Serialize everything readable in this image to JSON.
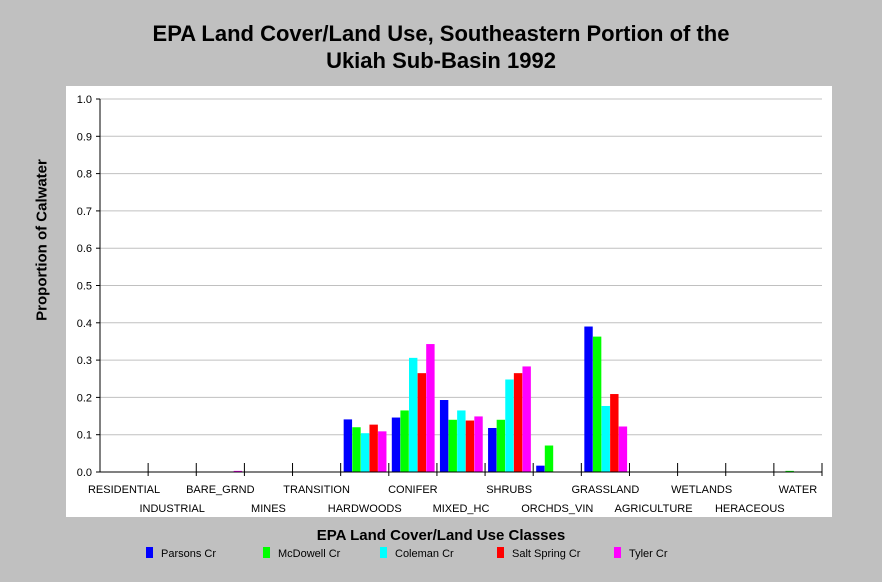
{
  "chart_data": {
    "type": "bar",
    "title": "EPA Land Cover/Land Use, Southeastern Portion of the Ukiah Sub-Basin 1992",
    "title_lines": [
      "EPA Land Cover/Land Use, Southeastern Portion of the",
      "Ukiah Sub-Basin 1992"
    ],
    "xlabel": "EPA Land Cover/Land Use Classes",
    "ylabel": "Proportion of Calwater",
    "ylim": [
      0,
      1
    ],
    "yticks": [
      "0.0",
      "0.1",
      "0.2",
      "0.3",
      "0.4",
      "0.5",
      "0.6",
      "0.7",
      "0.8",
      "0.9",
      "1.0"
    ],
    "grid": true,
    "legend_position": "bottom",
    "categories": [
      "RESIDENTIAL",
      "INDUSTRIAL",
      "BARE_GRND",
      "MINES",
      "TRANSITION",
      "HARDWOODS",
      "CONIFER",
      "MIXED_HC",
      "SHRUBS",
      "ORCHDS_VIN",
      "GRASSLAND",
      "AGRICULTURE",
      "WETLANDS",
      "HERACEOUS",
      "WATER"
    ],
    "series": [
      {
        "name": "Parsons Cr",
        "color": "#0000ff",
        "values": [
          0,
          0,
          0,
          0,
          0,
          0.141,
          0.146,
          0.193,
          0.118,
          0.017,
          0.39,
          0,
          0,
          0,
          0
        ]
      },
      {
        "name": "McDowell Cr",
        "color": "#00ff00",
        "values": [
          0,
          0,
          0,
          0,
          0,
          0.12,
          0.165,
          0.14,
          0.14,
          0.071,
          0.363,
          0,
          0,
          0,
          0.003
        ]
      },
      {
        "name": "Coleman Cr",
        "color": "#00ffff",
        "values": [
          0,
          0,
          0,
          0,
          0,
          0.104,
          0.306,
          0.165,
          0.248,
          0,
          0.177,
          0,
          0,
          0,
          0
        ]
      },
      {
        "name": "Salt Spring Cr",
        "color": "#ff0000",
        "values": [
          0,
          0,
          0,
          0,
          0,
          0.127,
          0.265,
          0.138,
          0.265,
          0,
          0.209,
          0,
          0,
          0,
          0
        ]
      },
      {
        "name": "Tyler Cr",
        "color": "#ff00ff",
        "values": [
          0,
          0,
          0.003,
          0,
          0,
          0.109,
          0.343,
          0.149,
          0.283,
          0,
          0.122,
          0,
          0,
          0,
          0
        ]
      }
    ]
  }
}
